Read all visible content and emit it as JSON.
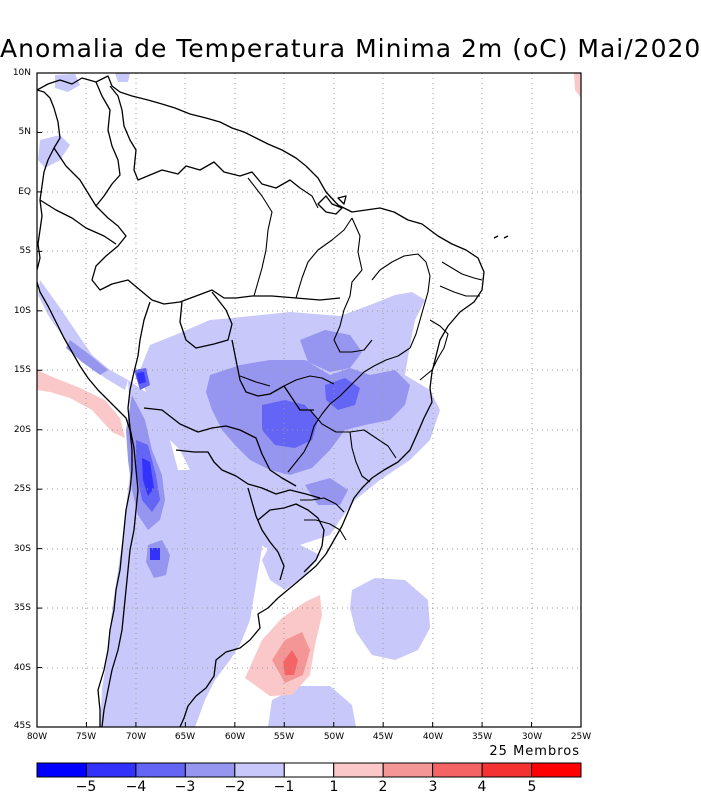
{
  "title": "Anomalia de Temperatura Minima 2m (oC) Mai/2020",
  "members_label": "25 Membros",
  "map": {
    "lon_range": [
      -80,
      -25
    ],
    "lat_range": [
      -45,
      10
    ],
    "grid_lines": "dotted",
    "lat_ticks": [
      {
        "value": 10,
        "label": "10N"
      },
      {
        "value": 5,
        "label": "5N"
      },
      {
        "value": 0,
        "label": "EQ"
      },
      {
        "value": -5,
        "label": "5S"
      },
      {
        "value": -10,
        "label": "10S"
      },
      {
        "value": -15,
        "label": "15S"
      },
      {
        "value": -20,
        "label": "20S"
      },
      {
        "value": -25,
        "label": "25S"
      },
      {
        "value": -30,
        "label": "30S"
      },
      {
        "value": -35,
        "label": "35S"
      },
      {
        "value": -40,
        "label": "40S"
      },
      {
        "value": -45,
        "label": "45S"
      }
    ],
    "lon_ticks": [
      {
        "value": -80,
        "label": "80W"
      },
      {
        "value": -75,
        "label": "75W"
      },
      {
        "value": -70,
        "label": "70W"
      },
      {
        "value": -65,
        "label": "65W"
      },
      {
        "value": -60,
        "label": "60W"
      },
      {
        "value": -55,
        "label": "55W"
      },
      {
        "value": -50,
        "label": "50W"
      },
      {
        "value": -45,
        "label": "45W"
      },
      {
        "value": -40,
        "label": "40W"
      },
      {
        "value": -35,
        "label": "35W"
      },
      {
        "value": -30,
        "label": "30W"
      },
      {
        "value": -25,
        "label": "25W"
      }
    ]
  },
  "colorbar": {
    "colors": [
      "#0000ff",
      "#3232fa",
      "#6464f5",
      "#9696f0",
      "#c8c8fa",
      "#ffffff",
      "#fac8c8",
      "#f59696",
      "#f56464",
      "#f53232",
      "#ff0000"
    ],
    "labels": [
      {
        "value": -5,
        "label": "−5"
      },
      {
        "value": -4,
        "label": "−4"
      },
      {
        "value": -3,
        "label": "−3"
      },
      {
        "value": -2,
        "label": "−2"
      },
      {
        "value": -1,
        "label": "−1"
      },
      {
        "value": 1,
        "label": "1"
      },
      {
        "value": 2,
        "label": "2"
      },
      {
        "value": 3,
        "label": "3"
      },
      {
        "value": 4,
        "label": "4"
      },
      {
        "value": 5,
        "label": "5"
      }
    ]
  },
  "colors": {
    "anomaly_minus1_to_minus2": "#c8c8fa",
    "anomaly_minus2_to_minus3": "#9696f0",
    "anomaly_minus3_to_minus4": "#6464f5",
    "anomaly_minus4_to_minus5": "#3232fa",
    "anomaly_below_minus5": "#0000ff",
    "anomaly_1_to_2": "#fac8c8",
    "anomaly_2_to_3": "#f59696",
    "anomaly_3_to_4": "#f56464"
  }
}
